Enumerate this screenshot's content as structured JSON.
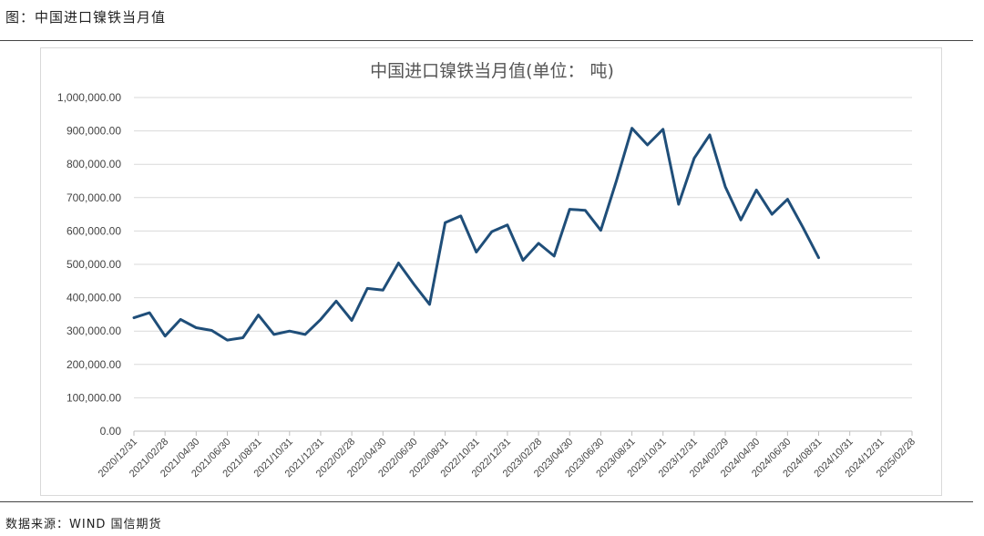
{
  "figure": {
    "header": "图：中国进口镍铁当月值",
    "source": "数据来源：WIND 国信期货"
  },
  "chart_data": {
    "type": "line",
    "title": "中国进口镍铁当月值(单位： 吨)",
    "xlabel": "",
    "ylabel": "",
    "ylim": [
      0,
      1000000
    ],
    "y_ticks": [
      "0.00",
      "100,000.00",
      "200,000.00",
      "300,000.00",
      "400,000.00",
      "500,000.00",
      "600,000.00",
      "700,000.00",
      "800,000.00",
      "900,000.00",
      "1,000,000.00"
    ],
    "grid": true,
    "legend": "none",
    "line_color": "#1f4e79",
    "x_tick_labels": [
      "2020/12/31",
      "2021/02/28",
      "2021/04/30",
      "2021/06/30",
      "2021/08/31",
      "2021/10/31",
      "2021/12/31",
      "2022/02/28",
      "2022/04/30",
      "2022/06/30",
      "2022/08/31",
      "2022/10/31",
      "2022/12/31",
      "2023/02/28",
      "2023/04/30",
      "2023/06/30",
      "2023/08/31",
      "2023/10/31",
      "2023/12/31",
      "2024/02/29",
      "2024/04/30",
      "2024/06/30",
      "2024/08/31",
      "2024/10/31",
      "2024/12/31",
      "2025/02/28"
    ],
    "x": [
      "2020/12",
      "2021/01",
      "2021/02",
      "2021/03",
      "2021/04",
      "2021/05",
      "2021/06",
      "2021/07",
      "2021/08",
      "2021/09",
      "2021/10",
      "2021/11",
      "2021/12",
      "2022/01",
      "2022/02",
      "2022/03",
      "2022/04",
      "2022/05",
      "2022/06",
      "2022/07",
      "2022/08",
      "2022/09",
      "2022/10",
      "2022/11",
      "2022/12",
      "2023/01",
      "2023/02",
      "2023/03",
      "2023/04",
      "2023/05",
      "2023/06",
      "2023/07",
      "2023/08",
      "2023/09",
      "2023/10",
      "2023/11",
      "2023/12",
      "2024/01",
      "2024/02",
      "2024/03",
      "2024/04",
      "2024/05",
      "2024/06",
      "2024/07",
      "2024/08"
    ],
    "values": [
      340000,
      355000,
      285000,
      335000,
      310000,
      302000,
      273000,
      280000,
      348000,
      290000,
      300000,
      290000,
      335000,
      390000,
      332000,
      428000,
      423000,
      504000,
      440000,
      380000,
      625000,
      645000,
      537000,
      598000,
      618000,
      512000,
      563000,
      525000,
      665000,
      662000,
      602000,
      750000,
      908000,
      858000,
      905000,
      680000,
      818000,
      888000,
      733000,
      633000,
      723000,
      650000,
      695000,
      610000,
      520000
    ]
  }
}
